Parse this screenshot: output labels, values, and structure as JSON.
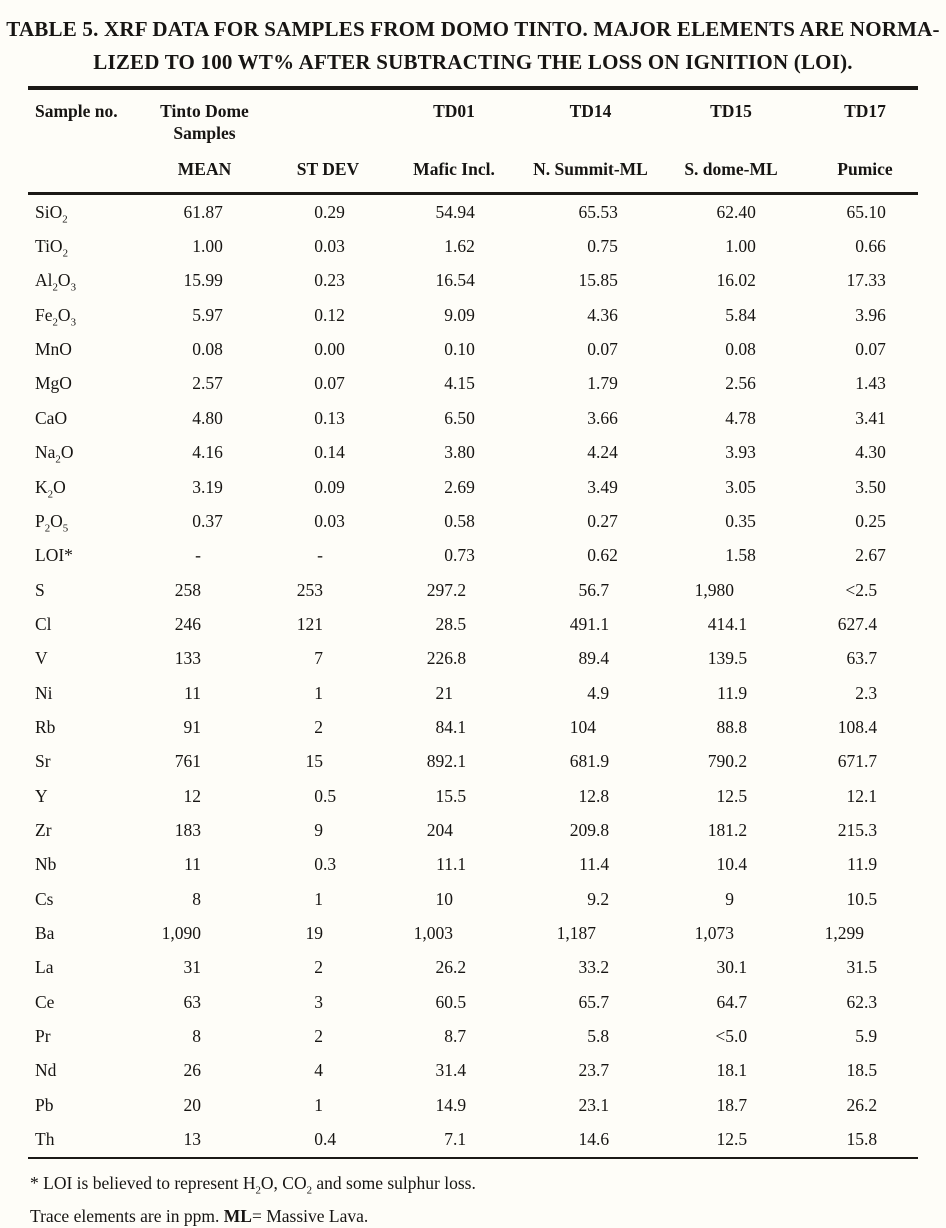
{
  "title": {
    "line1": "TABLE 5. XRF DATA FOR SAMPLES FROM DOMO TINTO. MAJOR ELEMENTS ARE NORMA-",
    "line2": "LIZED TO 100 WT% AFTER SUBTRACTING THE LOSS ON IGNITION (LOI)."
  },
  "table": {
    "header_row1": {
      "sample_col": "Sample no.",
      "group_line1": "Tinto Dome",
      "group_line2": "Samples",
      "td01": "TD01",
      "td14": "TD14",
      "td15": "TD15",
      "td17": "TD17"
    },
    "header_row2": {
      "mean": "MEAN",
      "stdev": "ST DEV",
      "td01": "Mafic Incl.",
      "td14": "N. Summit-ML",
      "td15": "S. dome-ML",
      "td17": "Pumice"
    },
    "rows": [
      {
        "label": "SiO_2",
        "values": [
          "61.87",
          "0.29",
          "54.94",
          "65.53",
          "62.40",
          "65.10"
        ]
      },
      {
        "label": "TiO_2",
        "values": [
          "1.00",
          "0.03",
          "1.62",
          "0.75",
          "1.00",
          "0.66"
        ]
      },
      {
        "label": "Al_2O_3",
        "values": [
          "15.99",
          "0.23",
          "16.54",
          "15.85",
          "16.02",
          "17.33"
        ]
      },
      {
        "label": "Fe_2O_3",
        "values": [
          "5.97",
          "0.12",
          "9.09",
          "4.36",
          "5.84",
          "3.96"
        ]
      },
      {
        "label": "MnO",
        "values": [
          "0.08",
          "0.00",
          "0.10",
          "0.07",
          "0.08",
          "0.07"
        ]
      },
      {
        "label": "MgO",
        "values": [
          "2.57",
          "0.07",
          "4.15",
          "1.79",
          "2.56",
          "1.43"
        ]
      },
      {
        "label": "CaO",
        "values": [
          "4.80",
          "0.13",
          "6.50",
          "3.66",
          "4.78",
          "3.41"
        ]
      },
      {
        "label": "Na_2O",
        "values": [
          "4.16",
          "0.14",
          "3.80",
          "4.24",
          "3.93",
          "4.30"
        ]
      },
      {
        "label": "K_2O",
        "values": [
          "3.19",
          "0.09",
          "2.69",
          "3.49",
          "3.05",
          "3.50"
        ]
      },
      {
        "label": "P_2O_5",
        "values": [
          "0.37",
          "0.03",
          "0.58",
          "0.27",
          "0.35",
          "0.25"
        ]
      },
      {
        "label": "LOI*",
        "values": [
          "-",
          "-",
          "0.73",
          "0.62",
          "1.58",
          "2.67"
        ]
      },
      {
        "label": "S",
        "values": [
          "258",
          "253",
          "297.2",
          "56.7",
          "1,980",
          "<2.5"
        ]
      },
      {
        "label": "Cl",
        "values": [
          "246",
          "121",
          "28.5",
          "491.1",
          "414.1",
          "627.4"
        ]
      },
      {
        "label": "V",
        "values": [
          "133",
          "7",
          "226.8",
          "89.4",
          "139.5",
          "63.7"
        ]
      },
      {
        "label": "Ni",
        "values": [
          "11",
          "1",
          "21",
          "4.9",
          "11.9",
          "2.3"
        ]
      },
      {
        "label": "Rb",
        "values": [
          "91",
          "2",
          "84.1",
          "104",
          "88.8",
          "108.4"
        ]
      },
      {
        "label": "Sr",
        "values": [
          "761",
          "15",
          "892.1",
          "681.9",
          "790.2",
          "671.7"
        ]
      },
      {
        "label": "Y",
        "values": [
          "12",
          "0.5",
          "15.5",
          "12.8",
          "12.5",
          "12.1"
        ]
      },
      {
        "label": "Zr",
        "values": [
          "183",
          "9",
          "204",
          "209.8",
          "181.2",
          "215.3"
        ]
      },
      {
        "label": "Nb",
        "values": [
          "11",
          "0.3",
          "11.1",
          "11.4",
          "10.4",
          "11.9"
        ]
      },
      {
        "label": "Cs",
        "values": [
          "8",
          "1",
          "10",
          "9.2",
          "9",
          "10.5"
        ]
      },
      {
        "label": "Ba",
        "values": [
          "1,090",
          "19",
          "1,003",
          "1,187",
          "1,073",
          "1,299"
        ]
      },
      {
        "label": "La",
        "values": [
          "31",
          "2",
          "26.2",
          "33.2",
          "30.1",
          "31.5"
        ]
      },
      {
        "label": "Ce",
        "values": [
          "63",
          "3",
          "60.5",
          "65.7",
          "64.7",
          "62.3"
        ]
      },
      {
        "label": "Pr",
        "values": [
          "8",
          "2",
          "8.7",
          "5.8",
          "<5.0",
          "5.9"
        ]
      },
      {
        "label": "Nd",
        "values": [
          "26",
          "4",
          "31.4",
          "23.7",
          "18.1",
          "18.5"
        ]
      },
      {
        "label": "Pb",
        "values": [
          "20",
          "1",
          "14.9",
          "23.1",
          "18.7",
          "26.2"
        ]
      },
      {
        "label": "Th",
        "values": [
          "13",
          "0.4",
          "7.1",
          "14.6",
          "12.5",
          "15.8"
        ]
      }
    ]
  },
  "footnotes": {
    "loi": "* LOI  is believed to represent H_2O, CO_2 and some sulphur loss.",
    "trace": "Trace elements are in ppm. **ML**= Massive Lava."
  },
  "colors": {
    "paper": "#fefdf8",
    "ink": "#171513"
  }
}
